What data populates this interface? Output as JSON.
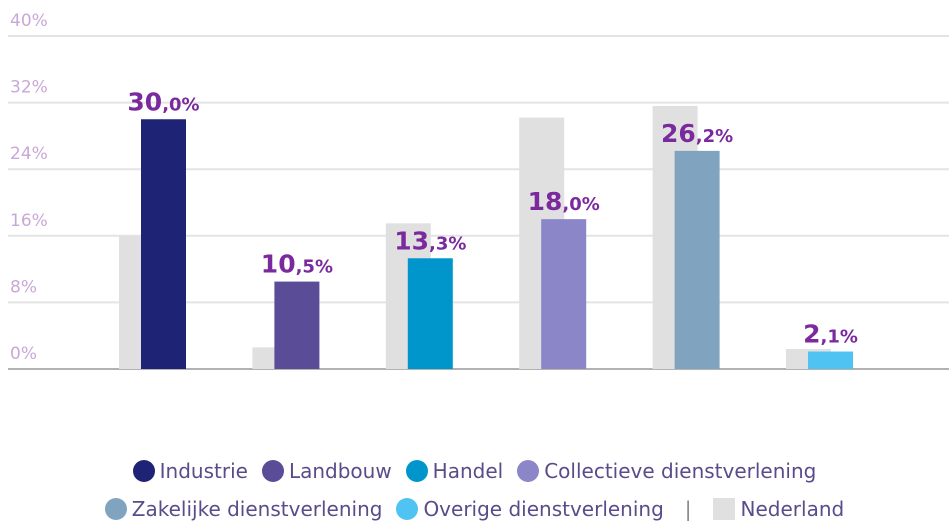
{
  "chart_data": {
    "type": "bar",
    "categories": [
      "Industrie",
      "Landbouw",
      "Handel",
      "Collectieve dienstverlening",
      "Zakelijke dienstverlening",
      "Overige dienstverlening"
    ],
    "values": [
      30.0,
      10.5,
      13.3,
      18.0,
      26.2,
      2.1
    ],
    "value_labels": [
      "30,0%",
      "10,5%",
      "13,3%",
      "18,0%",
      "26,2%",
      "2,1%"
    ],
    "colors": [
      "#1f2375",
      "#5b4c97",
      "#0096cc",
      "#8a86c8",
      "#80a4bf",
      "#4fc3f2"
    ],
    "benchmark": {
      "name": "Nederland",
      "color": "#e0e0e0",
      "values": [
        16.0,
        2.6,
        17.5,
        30.2,
        31.6,
        2.4
      ]
    },
    "legend_separator": "|",
    "ylim": [
      0,
      40
    ],
    "yticks": [
      {
        "value": 0,
        "label": "0%"
      },
      {
        "value": 8,
        "label": "8%"
      },
      {
        "value": 16,
        "label": "16%"
      },
      {
        "value": 24,
        "label": "24%"
      },
      {
        "value": 32,
        "label": "32%"
      },
      {
        "value": 40,
        "label": "40%"
      }
    ],
    "grid": true
  }
}
